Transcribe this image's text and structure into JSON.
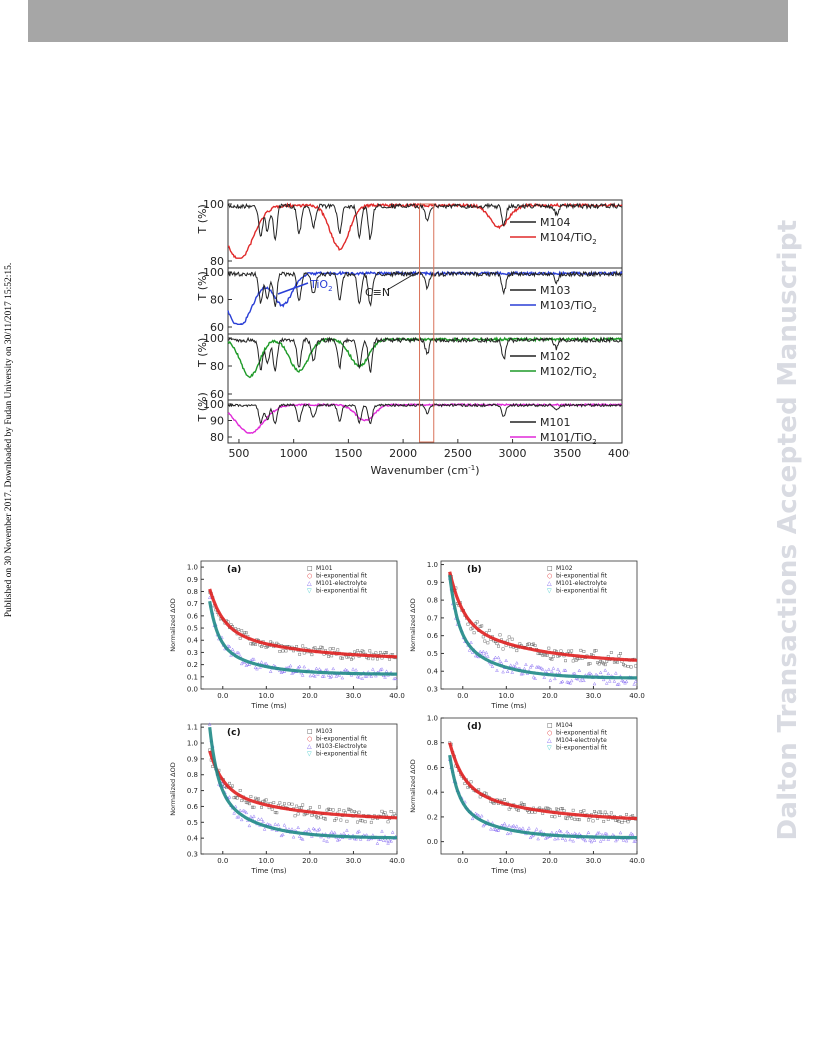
{
  "margin_left_text": "Published on 30 November 2017. Downloaded by Fudan University on 30/11/2017 15:52:15.",
  "margin_right_text": "Dalton Transactions Accepted Manuscript",
  "ir_figure": {
    "xlabel": "Wavenumber (cm",
    "xlabel_sup": "-1",
    "xlabel_end": ")",
    "xticks": [
      "500",
      "1000",
      "1500",
      "2000",
      "2500",
      "3000",
      "3500",
      "4000"
    ],
    "ylabel": "T (%)",
    "cn_label": "C≡N",
    "tio2_label": "TiO",
    "tio2_sub": "2",
    "panels": [
      {
        "yticks": [
          "100",
          "80"
        ],
        "legend": [
          "M104",
          "M104/TiO"
        ],
        "sub": "2",
        "color": "#e02a2a"
      },
      {
        "yticks": [
          "100",
          "80",
          "60"
        ],
        "legend": [
          "M103",
          "M103/TiO"
        ],
        "sub": "2",
        "color": "#2a3fd6"
      },
      {
        "yticks": [
          "100",
          "80",
          "60"
        ],
        "legend": [
          "M102",
          "M102/TiO"
        ],
        "sub": "2",
        "color": "#1e9a28"
      },
      {
        "yticks": [
          "100",
          "90",
          "80"
        ],
        "legend": [
          "M101",
          "M101/TiO"
        ],
        "sub": "2",
        "color": "#e02ad8"
      }
    ]
  },
  "chart_data": [
    {
      "type": "scatter",
      "title": "(a)",
      "xlabel": "Time (ms)",
      "ylabel": "Normalized ΔOD",
      "xlim": [
        -5,
        40
      ],
      "ylim": [
        0.0,
        1.05
      ],
      "xticks": [
        "0.0",
        "10.0",
        "20.0",
        "30.0",
        "40.0"
      ],
      "yticks": [
        "0.0",
        "0.1",
        "0.2",
        "0.3",
        "0.4",
        "0.5",
        "0.6",
        "0.7",
        "0.8",
        "0.9",
        "1.0"
      ],
      "series": [
        {
          "name": "M101",
          "start": 0.82,
          "end": 0.24
        },
        {
          "name": "bi-exponential fit",
          "start": 0.82,
          "end": 0.24
        },
        {
          "name": "M101-electrolyte",
          "start": 0.72,
          "end": 0.12
        },
        {
          "name": "bi-exponential fit",
          "start": 0.72,
          "end": 0.12
        }
      ]
    },
    {
      "type": "scatter",
      "title": "(b)",
      "xlabel": "Time (ms)",
      "ylabel": "Normalized ΔOD",
      "xlim": [
        -5,
        40
      ],
      "ylim": [
        0.3,
        1.02
      ],
      "xticks": [
        "0.0",
        "10.0",
        "20.0",
        "30.0",
        "40.0"
      ],
      "yticks": [
        "0.3",
        "0.4",
        "0.5",
        "0.6",
        "0.7",
        "0.8",
        "0.9",
        "1.0"
      ],
      "series": [
        {
          "name": "M102",
          "start": 0.96,
          "end": 0.44
        },
        {
          "name": "bi-exponential fit",
          "start": 0.96,
          "end": 0.44
        },
        {
          "name": "M101-electrolyte",
          "start": 0.94,
          "end": 0.36
        },
        {
          "name": "bi-exponential fit",
          "start": 0.94,
          "end": 0.36
        }
      ]
    },
    {
      "type": "scatter",
      "title": "(c)",
      "xlabel": "Time (ms)",
      "ylabel": "Normalized ΔOD",
      "xlim": [
        -5,
        40
      ],
      "ylim": [
        0.3,
        1.12
      ],
      "xticks": [
        "0.0",
        "10.0",
        "20.0",
        "30.0",
        "40.0"
      ],
      "yticks": [
        "0.3",
        "0.4",
        "0.5",
        "0.6",
        "0.7",
        "0.8",
        "0.9",
        "1.0",
        "1.1"
      ],
      "series": [
        {
          "name": "M103",
          "start": 0.95,
          "end": 0.51
        },
        {
          "name": "bi-exponential fit",
          "start": 0.95,
          "end": 0.51
        },
        {
          "name": "M103-Electrolyte",
          "start": 1.1,
          "end": 0.4
        },
        {
          "name": "bi-exponential fit",
          "start": 1.1,
          "end": 0.4
        }
      ]
    },
    {
      "type": "scatter",
      "title": "(d)",
      "xlabel": "Time (ms)",
      "ylabel": "Normalized ΔOD",
      "xlim": [
        -5,
        40
      ],
      "ylim": [
        -0.1,
        1.0
      ],
      "xticks": [
        "0.0",
        "10.0",
        "20.0",
        "30.0",
        "40.0"
      ],
      "yticks": [
        "0.0",
        "0.2",
        "0.4",
        "0.6",
        "0.8",
        "1.0"
      ],
      "series": [
        {
          "name": "M104",
          "start": 0.8,
          "end": 0.16
        },
        {
          "name": "bi-exponential fit",
          "start": 0.8,
          "end": 0.16
        },
        {
          "name": "M104-electrolyte",
          "start": 0.7,
          "end": 0.03
        },
        {
          "name": "bi-exponential fit",
          "start": 0.7,
          "end": 0.03
        }
      ]
    }
  ],
  "colors": {
    "black": "#222222",
    "red": "#e02020",
    "blue": "#7a5cf0",
    "teal": "#1f8a86",
    "cyan": "#3cc8c8"
  }
}
